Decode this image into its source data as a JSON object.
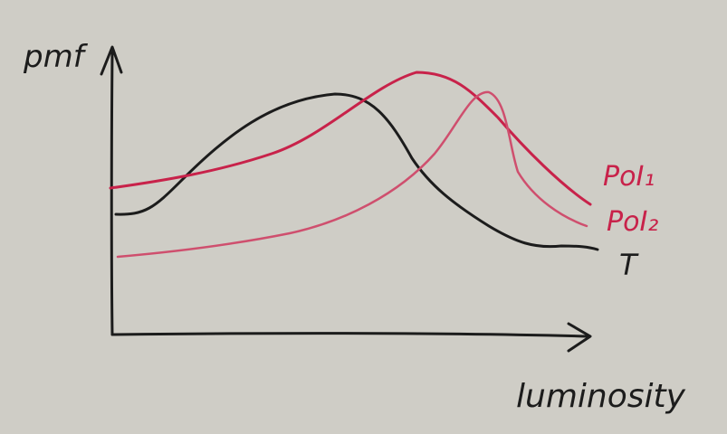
{
  "diagram": {
    "y_axis_label": "pmf",
    "x_axis_label": "luminosity",
    "curves": [
      {
        "id": "poi1",
        "label": "PoI₁",
        "color": "#c8224a"
      },
      {
        "id": "poi2",
        "label": "PoI₂",
        "color": "#c8224a"
      },
      {
        "id": "t",
        "label": "T",
        "color": "#1c1c1c"
      }
    ],
    "colors": {
      "paper": "#cfcdc6",
      "ink_black": "#1c1c1c",
      "ink_red": "#c8224a",
      "ink_pink": "#cf4f6e"
    }
  }
}
